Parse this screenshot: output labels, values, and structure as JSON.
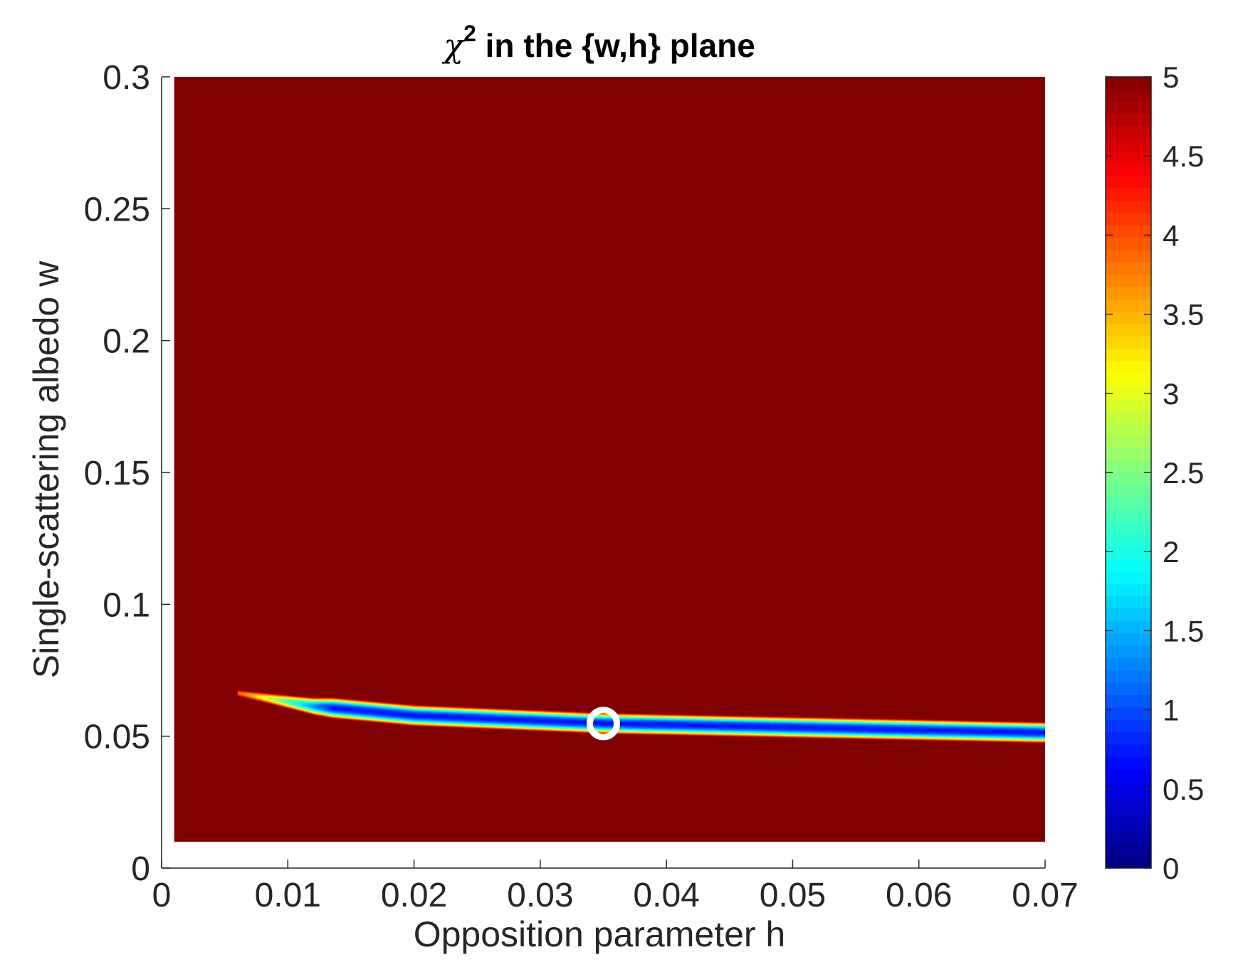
{
  "chart_data": {
    "type": "heatmap",
    "title": {
      "symbol": "χ",
      "superscript": "2",
      "text": " in the {w,h} plane"
    },
    "xlabel": "Opposition parameter h",
    "ylabel": "Single-scattering albedo w",
    "xlim": [
      0,
      0.07
    ],
    "ylim": [
      0,
      0.3
    ],
    "x_ticks": [
      "0",
      "0.01",
      "0.02",
      "0.03",
      "0.04",
      "0.05",
      "0.06",
      "0.07"
    ],
    "y_ticks": [
      "0",
      "0.05",
      "0.1",
      "0.15",
      "0.2",
      "0.25",
      "0.3"
    ],
    "grid": false,
    "data_extent": {
      "h": [
        0.001,
        0.07
      ],
      "w": [
        0.01,
        0.3
      ]
    },
    "colormap": "jet",
    "colorbar": {
      "min": 0,
      "max": 5,
      "ticks": [
        "0",
        "0.5",
        "1",
        "1.5",
        "2",
        "2.5",
        "3",
        "3.5",
        "4",
        "4.5",
        "5"
      ],
      "saturated_color": "#800000",
      "discrete_levels": 64
    },
    "valley": {
      "description": "low-chi2 band; minimum along ridge",
      "start_h": 0.006,
      "ridge": [
        {
          "h": 0.006,
          "w": 0.0665
        },
        {
          "h": 0.012,
          "w": 0.0615
        },
        {
          "h": 0.02,
          "w": 0.058
        },
        {
          "h": 0.03,
          "w": 0.056
        },
        {
          "h": 0.035,
          "w": 0.055
        },
        {
          "h": 0.04,
          "w": 0.0545
        },
        {
          "h": 0.05,
          "w": 0.0535
        },
        {
          "h": 0.06,
          "w": 0.0525
        },
        {
          "h": 0.07,
          "w": 0.0515
        }
      ],
      "half_width_w": 0.0042,
      "min_value": 0.7
    },
    "best_fit": {
      "h": 0.035,
      "w": 0.0548,
      "marker": "circle",
      "color": "#ffffff"
    }
  }
}
